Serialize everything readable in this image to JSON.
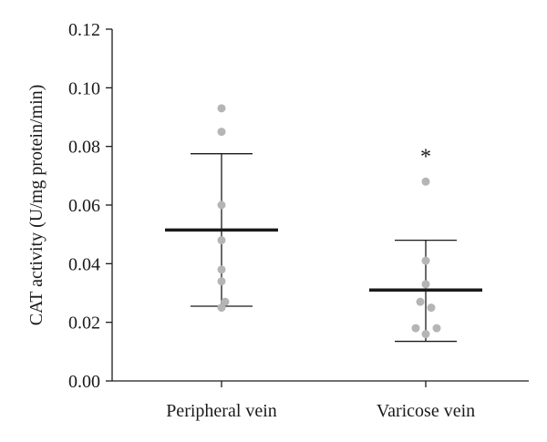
{
  "chart_data": {
    "type": "scatter",
    "title": "",
    "xlabel": "",
    "ylabel": "CAT activity (U/mg protein/min)",
    "ylim": [
      0,
      0.12
    ],
    "yticks": [
      "0.00",
      "0.02",
      "0.04",
      "0.06",
      "0.08",
      "0.10",
      "0.12"
    ],
    "categories": [
      "Peripheral vein",
      "Varicose vein"
    ],
    "groups": [
      {
        "category": "Peripheral vein",
        "points": [
          0.093,
          0.085,
          0.06,
          0.048,
          0.038,
          0.034,
          0.027,
          0.025
        ],
        "mean": 0.0515,
        "sd_upper": 0.0775,
        "sd_lower": 0.0255,
        "annotation": ""
      },
      {
        "category": "Varicose vein",
        "points": [
          0.068,
          0.041,
          0.033,
          0.027,
          0.025,
          0.018,
          0.018,
          0.016
        ],
        "mean": 0.031,
        "sd_upper": 0.048,
        "sd_lower": 0.0135,
        "annotation": "*"
      }
    ],
    "grid": false,
    "legend": "none",
    "colors": {
      "point": "#b5b5b5",
      "line": "#1a1a1a"
    }
  }
}
